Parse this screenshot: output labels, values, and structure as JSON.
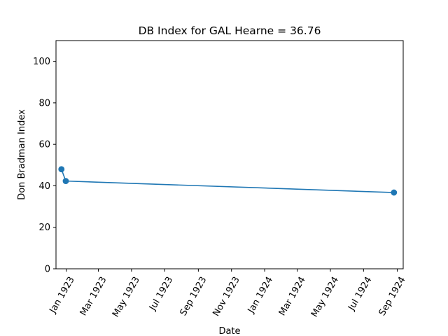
{
  "chart_data": {
    "type": "line",
    "title": "DB Index for GAL Hearne = 36.76",
    "xlabel": "Date",
    "ylabel": "Don Bradman Index",
    "ylim": [
      0,
      110
    ],
    "xlim": [
      "1922-12-13",
      "1924-09-12"
    ],
    "yticks": [
      0,
      20,
      40,
      60,
      80,
      100
    ],
    "xticks": [
      {
        "date": "1923-01-01",
        "label": "Jan 1923"
      },
      {
        "date": "1923-03-01",
        "label": "Mar 1923"
      },
      {
        "date": "1923-05-01",
        "label": "May 1923"
      },
      {
        "date": "1923-07-01",
        "label": "Jul 1923"
      },
      {
        "date": "1923-09-01",
        "label": "Sep 1923"
      },
      {
        "date": "1923-11-01",
        "label": "Nov 1923"
      },
      {
        "date": "1924-01-01",
        "label": "Jan 1924"
      },
      {
        "date": "1924-03-01",
        "label": "Mar 1924"
      },
      {
        "date": "1924-05-01",
        "label": "May 1924"
      },
      {
        "date": "1924-07-01",
        "label": "Jul 1924"
      },
      {
        "date": "1924-09-01",
        "label": "Sep 1924"
      }
    ],
    "grid": false,
    "series": [
      {
        "color": "#1f77b4",
        "points": [
          {
            "x": "1922-12-23",
            "y": 48.0
          },
          {
            "x": "1922-12-31",
            "y": 42.3
          },
          {
            "x": "1924-08-26",
            "y": 36.76
          }
        ]
      }
    ]
  }
}
